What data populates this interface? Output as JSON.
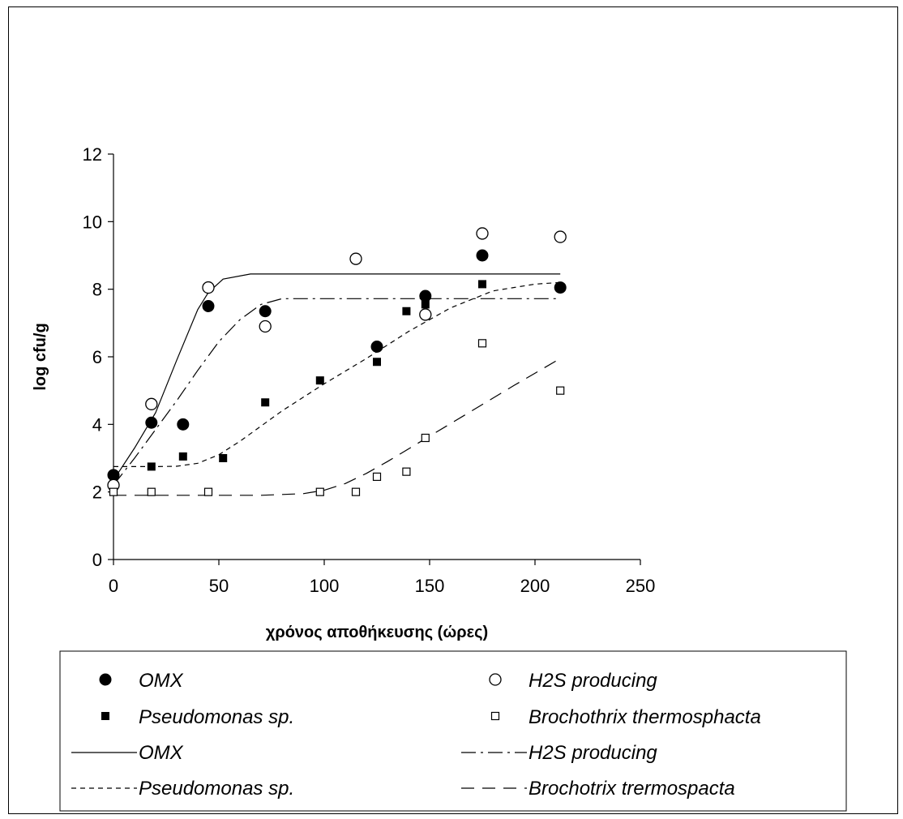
{
  "chart_data": {
    "type": "scatter",
    "xlabel": "χρόνος αποθήκευσης (ώρες)",
    "ylabel": "log cfu/g",
    "xlim": [
      0,
      250
    ],
    "ylim": [
      0,
      12
    ],
    "xticks": [
      0,
      50,
      100,
      150,
      200,
      250
    ],
    "yticks": [
      0,
      2,
      4,
      6,
      8,
      10,
      12
    ],
    "grid": false,
    "legend_position": "bottom",
    "series": [
      {
        "name": "OMX",
        "kind": "points",
        "marker": "filled-circle",
        "x": [
          0,
          18,
          33,
          45,
          72,
          125,
          148,
          175,
          212
        ],
        "y": [
          2.5,
          4.05,
          4.0,
          7.5,
          7.35,
          6.3,
          7.8,
          9.0,
          8.05
        ]
      },
      {
        "name": "H2S producing",
        "kind": "points",
        "marker": "open-circle",
        "x": [
          0,
          18,
          45,
          72,
          115,
          148,
          175,
          212
        ],
        "y": [
          2.2,
          4.6,
          8.05,
          6.9,
          8.9,
          7.25,
          9.65,
          9.55
        ]
      },
      {
        "name": "Pseudomonas sp.",
        "kind": "points",
        "marker": "filled-square",
        "x": [
          0,
          18,
          33,
          52,
          72,
          98,
          125,
          139,
          148,
          175,
          212
        ],
        "y": [
          2.5,
          2.75,
          3.05,
          3.0,
          4.65,
          5.3,
          5.85,
          7.35,
          7.55,
          8.15,
          8.05
        ]
      },
      {
        "name": "Brochothrix thermosphacta",
        "kind": "points",
        "marker": "open-square",
        "x": [
          0,
          18,
          45,
          98,
          115,
          125,
          139,
          148,
          175,
          212
        ],
        "y": [
          2.0,
          2.0,
          2.0,
          2.0,
          2.0,
          2.45,
          2.6,
          3.6,
          6.4,
          5.0
        ]
      },
      {
        "name": "OMX",
        "kind": "line",
        "dash": "solid",
        "x": [
          0,
          10,
          20,
          30,
          40,
          45,
          52,
          65,
          100,
          150,
          212
        ],
        "y": [
          2.35,
          3.3,
          4.35,
          5.9,
          7.4,
          7.9,
          8.3,
          8.45,
          8.45,
          8.45,
          8.45
        ]
      },
      {
        "name": "H2S producing",
        "kind": "line",
        "dash": "long-dash-dot",
        "x": [
          0,
          10,
          20,
          30,
          40,
          50,
          60,
          70,
          80,
          100,
          150,
          212
        ],
        "y": [
          2.2,
          3.0,
          3.85,
          4.7,
          5.6,
          6.45,
          7.1,
          7.55,
          7.72,
          7.72,
          7.72,
          7.72
        ]
      },
      {
        "name": "Pseudomonas sp.",
        "kind": "line",
        "dash": "short-dash",
        "x": [
          0,
          10,
          20,
          30,
          40,
          50,
          60,
          80,
          100,
          120,
          140,
          160,
          180,
          200,
          212
        ],
        "y": [
          2.75,
          2.75,
          2.75,
          2.76,
          2.85,
          3.1,
          3.5,
          4.4,
          5.2,
          5.95,
          6.75,
          7.45,
          7.95,
          8.15,
          8.2
        ]
      },
      {
        "name": "Brochotrix trermospacta",
        "kind": "line",
        "dash": "long-dash",
        "x": [
          0,
          20,
          50,
          70,
          90,
          100,
          110,
          120,
          130,
          150,
          170,
          190,
          212
        ],
        "y": [
          1.9,
          1.9,
          1.9,
          1.9,
          1.95,
          2.05,
          2.25,
          2.55,
          2.9,
          3.65,
          4.4,
          5.15,
          5.95
        ]
      }
    ]
  },
  "legend": {
    "items": [
      {
        "label": "OMX",
        "symbol": "filled-circle"
      },
      {
        "label": "H2S producing",
        "symbol": "open-circle"
      },
      {
        "label": "Pseudomonas sp.",
        "symbol": "filled-square"
      },
      {
        "label": "Brochothrix thermosphacta",
        "symbol": "open-square"
      },
      {
        "label": "OMX",
        "symbol": "solid"
      },
      {
        "label": "H2S producing",
        "symbol": "long-dash-dot"
      },
      {
        "label": "Pseudomonas sp.",
        "symbol": "short-dash"
      },
      {
        "label": "Brochotrix trermospacta",
        "symbol": "long-dash"
      }
    ]
  },
  "colors": {
    "ink": "#000000",
    "background": "#ffffff"
  }
}
